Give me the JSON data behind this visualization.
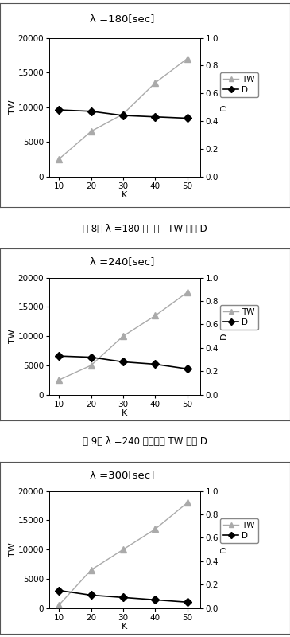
{
  "charts": [
    {
      "title": "λ =180[sec]",
      "caption_parts": [
        "図 8： λ =180 ",
        "における",
        " TW 及び D"
      ],
      "K": [
        10,
        20,
        30,
        40,
        50
      ],
      "TW": [
        2500,
        6500,
        9000,
        13500,
        17000
      ],
      "D": [
        0.48,
        0.47,
        0.44,
        0.43,
        0.42
      ]
    },
    {
      "title": "λ =240[sec]",
      "caption_parts": [
        "図 9： λ =240 ",
        "における",
        " TW 及び D"
      ],
      "K": [
        10,
        20,
        30,
        40,
        50
      ],
      "TW": [
        2500,
        5000,
        10000,
        13500,
        17500
      ],
      "D": [
        0.33,
        0.32,
        0.28,
        0.26,
        0.22
      ]
    },
    {
      "title": "λ =300[sec]",
      "caption_parts": null,
      "K": [
        10,
        20,
        30,
        40,
        50
      ],
      "TW": [
        500,
        6500,
        10000,
        13500,
        18000
      ],
      "D": [
        0.15,
        0.11,
        0.09,
        0.07,
        0.05
      ]
    }
  ],
  "TW_color": "#aaaaaa",
  "D_color": "#000000",
  "TW_marker": "^",
  "D_marker": "D",
  "TW_ylim": [
    0,
    20000
  ],
  "TW_yticks": [
    0,
    5000,
    10000,
    15000,
    20000
  ],
  "D_ylim": [
    0,
    1.0
  ],
  "D_yticks": [
    0,
    0.2,
    0.4,
    0.6,
    0.8,
    1.0
  ],
  "K_ticks": [
    10,
    20,
    30,
    40,
    50
  ],
  "bg_color": "#ffffff",
  "border_color": "#000000",
  "caption_font": 8.5,
  "title_font": 9.5,
  "axis_label_font": 8,
  "tick_font": 7.5
}
